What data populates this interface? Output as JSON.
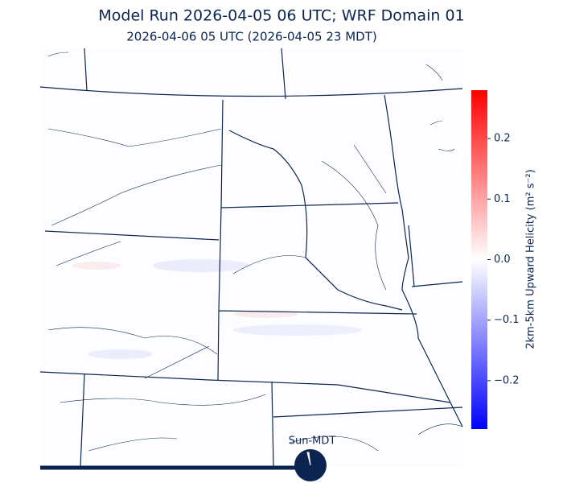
{
  "title": "Model Run 2026-04-05 06 UTC; WRF Domain 01",
  "subtitle": "2026-04-06 05 UTC  (2026-04-05 23 MDT)",
  "colorbar": {
    "label": "2km-5km Upward Helicity (m² s⁻²)",
    "lim": [
      -0.28,
      0.28
    ],
    "ticks": [
      {
        "value": -0.2,
        "label": "−0.2"
      },
      {
        "value": -0.1,
        "label": "−0.1"
      },
      {
        "value": 0.0,
        "label": "0.0"
      },
      0.1,
      0.2
    ]
  },
  "timeline": {
    "label": "Sun-MDT"
  }
}
